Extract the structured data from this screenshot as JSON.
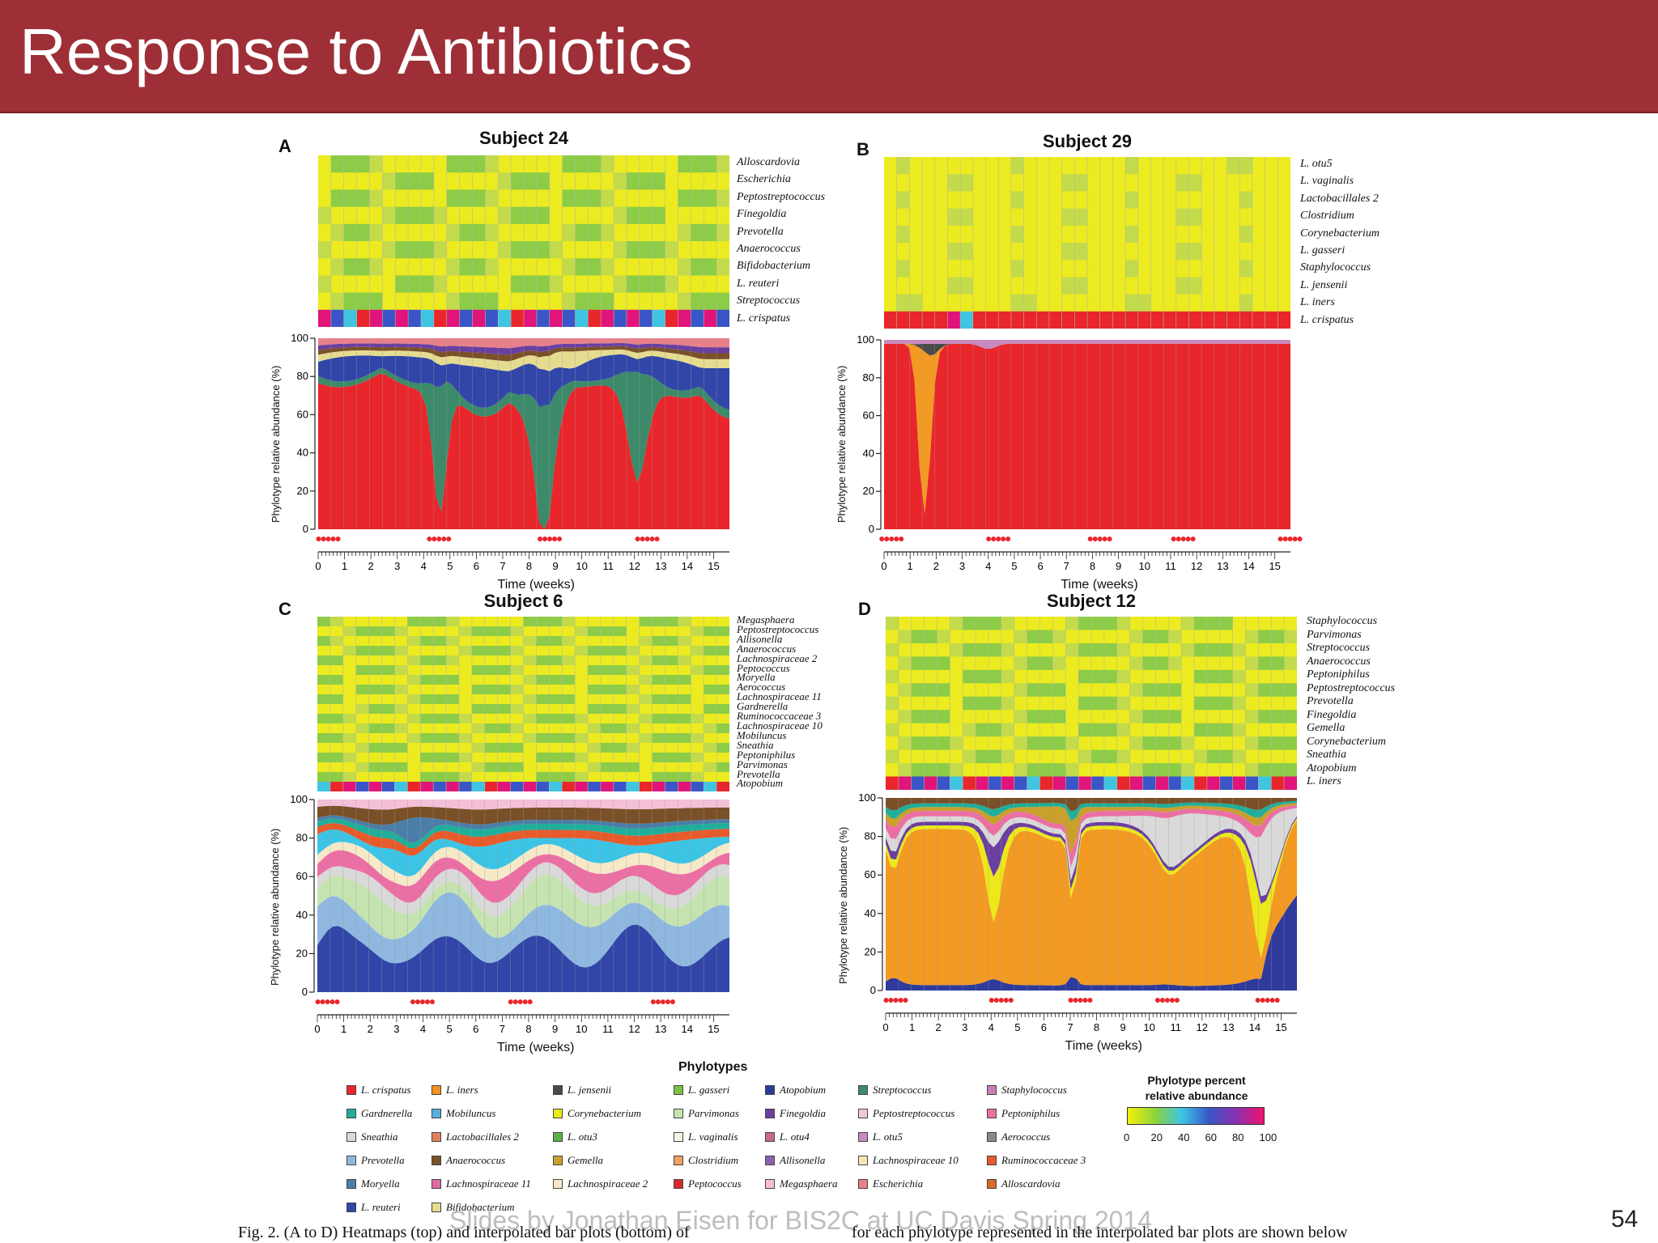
{
  "slide": {
    "title": "Response to Antibiotics",
    "watermark": "Slides by Jonathan Eisen for BIS2C at UC Davis Spring 2014",
    "slide_number": "54",
    "caption_left": "Fig. 2. (A to D) Heatmaps (top) and interpolated bar plots (bottom) of",
    "caption_right": "for each phylotype represented in the interpolated bar plots are shown below"
  },
  "panels": [
    {
      "letter": "A",
      "title": "Subject 24",
      "taxa": [
        "Alloscardovia",
        "Escherichia",
        "Peptostreptococcus",
        "Finegoldia",
        "Prevotella",
        "Anaerococcus",
        "Bifidobacterium",
        "L. reuteri",
        "Streptococcus",
        "L. crispatus"
      ],
      "ylabel": "Phylotype relative abundance (%)",
      "xlabel": "Time (weeks)"
    },
    {
      "letter": "B",
      "title": "Subject 29",
      "taxa": [
        "L. otu5",
        "L. vaginalis",
        "Lactobacillales 2",
        "Clostridium",
        "Corynebacterium",
        "L. gasseri",
        "Staphylococcus",
        "L. jensenii",
        "L. iners",
        "L. crispatus"
      ],
      "ylabel": "Phylotype relative abundance (%)",
      "xlabel": "Time (weeks)"
    },
    {
      "letter": "C",
      "title": "Subject 6",
      "taxa": [
        "Megasphaera",
        "Peptostreptococcus",
        "Allisonella",
        "Anaerococcus",
        "Lachnospiraceae 2",
        "Peptococcus",
        "Moryella",
        "Aerococcus",
        "Lachnospiraceae 11",
        "Gardnerella",
        "Ruminococcaceae 3",
        "Lachnospiraceae 10",
        "Mobiluncus",
        "Sneathia",
        "Peptoniphilus",
        "Parvimonas",
        "Prevotella",
        "Atopobium"
      ],
      "ylabel": "Phylotype relative abundance (%)",
      "xlabel": "Time (weeks)"
    },
    {
      "letter": "D",
      "title": "Subject 12",
      "taxa": [
        "Staphylococcus",
        "Parvimonas",
        "Streptococcus",
        "Anaerococcus",
        "Peptoniphilus",
        "Peptostreptococcus",
        "Prevotella",
        "Finegoldia",
        "Gemella",
        "Corynebacterium",
        "Sneathia",
        "Atopobium",
        "L. iners"
      ],
      "ylabel": "Phylotype relative abundance (%)",
      "xlabel": "Time (weeks)"
    }
  ],
  "axis": {
    "y_ticks": [
      "100",
      "80",
      "60",
      "40",
      "20",
      "0"
    ],
    "x_ticks": [
      "0",
      "1",
      "2",
      "3",
      "4",
      "5",
      "6",
      "7",
      "8",
      "9",
      "10",
      "11",
      "12",
      "13",
      "14",
      "15"
    ]
  },
  "legend": {
    "title": "Phylotypes",
    "items": [
      {
        "label": "L. crispatus",
        "color": "#e8262b"
      },
      {
        "label": "L. iners",
        "color": "#f0931e"
      },
      {
        "label": "L. jensenii",
        "color": "#4a4a4a"
      },
      {
        "label": "L. gasseri",
        "color": "#7cc142"
      },
      {
        "label": "Atopobium",
        "color": "#2e3a9c"
      },
      {
        "label": "Streptococcus",
        "color": "#3c8a6a"
      },
      {
        "label": "Staphylococcus",
        "color": "#c77fb6"
      },
      {
        "label": "Gardnerella",
        "color": "#1fae9a"
      },
      {
        "label": "Mobiluncus",
        "color": "#5aaedc"
      },
      {
        "label": "Corynebacterium",
        "color": "#ece81a"
      },
      {
        "label": "Parvimonas",
        "color": "#c5e3b0"
      },
      {
        "label": "Finegoldia",
        "color": "#6a3fa0"
      },
      {
        "label": "Peptostreptococcus",
        "color": "#f0c8dc"
      },
      {
        "label": "Peptoniphilus",
        "color": "#ec6fa4"
      },
      {
        "label": "Sneathia",
        "color": "#d9d9d9"
      },
      {
        "label": "Lactobacillales 2",
        "color": "#e0805c"
      },
      {
        "label": "L. otu3",
        "color": "#5fb04a"
      },
      {
        "label": "L. vaginalis",
        "color": "#f7f4e6"
      },
      {
        "label": "L. otu4",
        "color": "#c46b8e"
      },
      {
        "label": "L. otu5",
        "color": "#c98ac0"
      },
      {
        "label": "Aerococcus",
        "color": "#8a8a8a"
      },
      {
        "label": "Prevotella",
        "color": "#8fb8e0"
      },
      {
        "label": "Anaerococcus",
        "color": "#7a5028"
      },
      {
        "label": "Gemella",
        "color": "#c9a02a"
      },
      {
        "label": "Clostridium",
        "color": "#f0a060"
      },
      {
        "label": "Allisonella",
        "color": "#8d5fb0"
      },
      {
        "label": "Lachnospiraceae 10",
        "color": "#f8e6b8"
      },
      {
        "label": "Ruminococcaceae 3",
        "color": "#e85a2a"
      },
      {
        "label": "Moryella",
        "color": "#4a7ea8"
      },
      {
        "label": "Lachnospiraceae 11",
        "color": "#e06aa0"
      },
      {
        "label": "Lachnospiraceae 2",
        "color": "#f5e9c8"
      },
      {
        "label": "Peptococcus",
        "color": "#d8282e"
      },
      {
        "label": "Megasphaera",
        "color": "#f4c0d8"
      },
      {
        "label": "Escherichia",
        "color": "#e8808a"
      },
      {
        "label": "Alloscardovia",
        "color": "#d86a28"
      },
      {
        "label": "L. reuteri",
        "color": "#3146a8"
      },
      {
        "label": "Bifidobacterium",
        "color": "#e6dc90"
      }
    ]
  },
  "scale": {
    "title_line1": "Phylotype percent",
    "title_line2": "relative abundance",
    "ticks": [
      "0",
      "20",
      "40",
      "60",
      "80",
      "100"
    ]
  }
}
